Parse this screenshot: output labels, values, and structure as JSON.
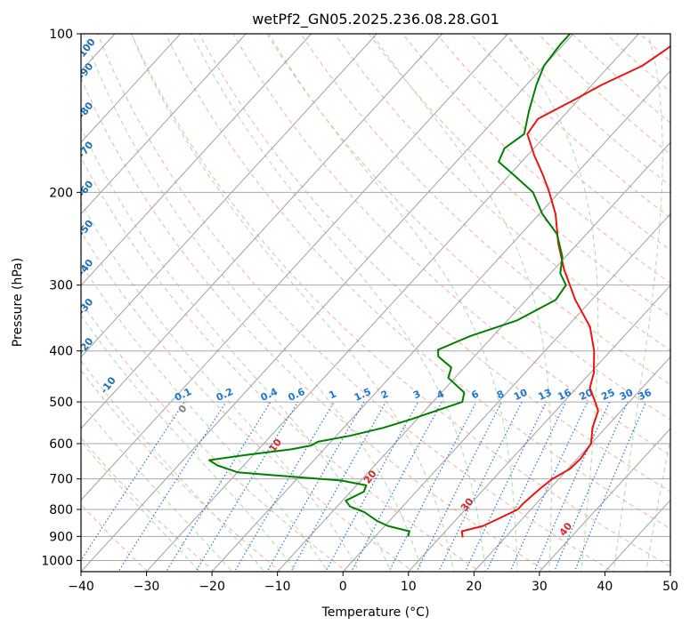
{
  "chart_data": {
    "type": "line",
    "subtype": "skew-T log-P diagram",
    "title": "wetPf2_GN05.2025.236.08.28.G01",
    "xlabel": "Temperature (°C)",
    "ylabel": "Pressure (hPa)",
    "xlim": [
      -40,
      50
    ],
    "ylim": [
      1050,
      100
    ],
    "yscale": "log",
    "grid": true,
    "x_ticks": [
      "−40",
      "−30",
      "−20",
      "−10",
      "0",
      "10",
      "20",
      "30",
      "40",
      "50"
    ],
    "y_ticks": [
      "100",
      "200",
      "300",
      "400",
      "500",
      "600",
      "700",
      "800",
      "900",
      "1000"
    ],
    "series": [
      {
        "key": "temperature",
        "color": "#e8160f",
        "points": [
          [
            904,
            13.5
          ],
          [
            880,
            12.5
          ],
          [
            860,
            15.0
          ],
          [
            830,
            16.5
          ],
          [
            800,
            18.0
          ],
          [
            780,
            18.0
          ],
          [
            760,
            18.2
          ],
          [
            730,
            18.5
          ],
          [
            700,
            19.0
          ],
          [
            670,
            20.3
          ],
          [
            640,
            20.5
          ],
          [
            600,
            20.0
          ],
          [
            560,
            18.0
          ],
          [
            520,
            16.5
          ],
          [
            500,
            14.8
          ],
          [
            470,
            12.0
          ],
          [
            440,
            10.5
          ],
          [
            400,
            7.5
          ],
          [
            360,
            3.5
          ],
          [
            320,
            -2.5
          ],
          [
            280,
            -8.5
          ],
          [
            250,
            -13.0
          ],
          [
            220,
            -17.5
          ],
          [
            200,
            -21.5
          ],
          [
            185,
            -25.0
          ],
          [
            170,
            -29.0
          ],
          [
            155,
            -33.0
          ],
          [
            145,
            -33.5
          ],
          [
            135,
            -31.0
          ],
          [
            125,
            -28.5
          ],
          [
            115,
            -25.0
          ],
          [
            108,
            -23.8
          ],
          [
            100,
            -22.5
          ]
        ]
      },
      {
        "key": "dewpoint",
        "color": "#008000",
        "points": [
          [
            900,
            5.0
          ],
          [
            880,
            4.5
          ],
          [
            860,
            0.5
          ],
          [
            840,
            -2.0
          ],
          [
            810,
            -5.0
          ],
          [
            790,
            -8.0
          ],
          [
            770,
            -9.5
          ],
          [
            740,
            -8.0
          ],
          [
            720,
            -8.5
          ],
          [
            705,
            -13.0
          ],
          [
            695,
            -20.0
          ],
          [
            680,
            -30.0
          ],
          [
            660,
            -34.0
          ],
          [
            645,
            -36.0
          ],
          [
            630,
            -31.0
          ],
          [
            615,
            -25.0
          ],
          [
            605,
            -22.5
          ],
          [
            595,
            -22.0
          ],
          [
            580,
            -18.0
          ],
          [
            560,
            -14.0
          ],
          [
            540,
            -11.0
          ],
          [
            500,
            -5.5
          ],
          [
            480,
            -6.5
          ],
          [
            450,
            -11.0
          ],
          [
            430,
            -12.0
          ],
          [
            410,
            -15.5
          ],
          [
            398,
            -16.5
          ],
          [
            375,
            -13.5
          ],
          [
            350,
            -8.5
          ],
          [
            320,
            -5.5
          ],
          [
            300,
            -6.0
          ],
          [
            285,
            -8.5
          ],
          [
            265,
            -10.5
          ],
          [
            240,
            -14.5
          ],
          [
            220,
            -19.5
          ],
          [
            200,
            -24.0
          ],
          [
            185,
            -29.5
          ],
          [
            175,
            -33.5
          ],
          [
            165,
            -34.5
          ],
          [
            155,
            -33.5
          ],
          [
            140,
            -36.0
          ],
          [
            125,
            -38.5
          ],
          [
            115,
            -40.0
          ],
          [
            105,
            -40.5
          ],
          [
            100,
            -40.5
          ]
        ]
      }
    ],
    "dry_adiabat_labels": [
      "-100",
      "-90",
      "-80",
      "-70",
      "-60",
      "-50",
      "-40",
      "-30",
      "-20",
      "-10",
      "0",
      "10",
      "20",
      "30",
      "40"
    ],
    "mixing_ratio_labels": [
      "0.1",
      "0.2",
      "0.4",
      "0.6",
      "1",
      "1.5",
      "2",
      "3",
      "4",
      "6",
      "8",
      "10",
      "13",
      "16",
      "20",
      "25",
      "30",
      "36"
    ],
    "colors": {
      "isotherm": "#a0a0a0",
      "isobar": "#a8a8a8",
      "dry_adiabat": "#f5b0a0",
      "moist_adiabat": "#9dd39d",
      "mixing_ratio": "#1f77d4",
      "dry_label_cold": "#1f6fb4",
      "dry_label_warm": "#d62728",
      "dry_label_zero": "#808080"
    }
  }
}
